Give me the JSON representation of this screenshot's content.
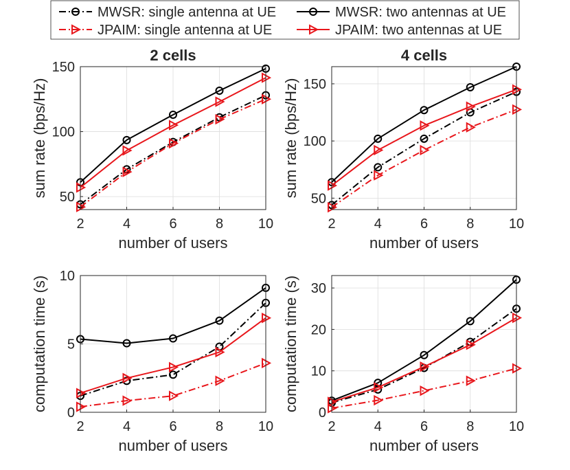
{
  "legend": {
    "entries": [
      {
        "label": "MWSR: single antenna at UE",
        "color": "#000000",
        "dash": "dashdot",
        "marker": "circle"
      },
      {
        "label": "MWSR: two antennas at UE",
        "color": "#000000",
        "dash": "solid",
        "marker": "circle"
      },
      {
        "label": "JPAIM: single antenna at UE",
        "color": "#e8161b",
        "dash": "dashdot",
        "marker": "triangle"
      },
      {
        "label": "JPAIM: two antennas at UE",
        "color": "#e8161b",
        "dash": "solid",
        "marker": "triangle"
      }
    ]
  },
  "chart_data": [
    {
      "type": "line",
      "title": "2 cells",
      "xlabel": "number of users",
      "ylabel": "sum rate (bps/Hz)",
      "x": [
        2,
        4,
        6,
        8,
        10
      ],
      "xlim": [
        2,
        10
      ],
      "ylim": [
        40,
        150
      ],
      "xticks": [
        "2",
        "4",
        "6",
        "8",
        "10"
      ],
      "yticks": [
        50,
        100,
        150
      ],
      "grid": true,
      "series": [
        {
          "name": "MWSR: single antenna at UE",
          "values": [
            44,
            71,
            92,
            111,
            128
          ]
        },
        {
          "name": "MWSR: two antennas at UE",
          "values": [
            61,
            93.5,
            113,
            131.5,
            148.5
          ]
        },
        {
          "name": "JPAIM: single antenna at UE",
          "values": [
            42,
            69,
            91,
            109.5,
            125
          ]
        },
        {
          "name": "JPAIM: two antennas at UE",
          "values": [
            57,
            85.5,
            105,
            123,
            141.5
          ]
        }
      ]
    },
    {
      "type": "line",
      "title": "4 cells",
      "xlabel": "number of users",
      "ylabel": "sum rate (bps/Hz)",
      "x": [
        2,
        4,
        6,
        8,
        10
      ],
      "xlim": [
        2,
        10
      ],
      "ylim": [
        40,
        165
      ],
      "xticks": [
        "2",
        "4",
        "6",
        "8",
        "10"
      ],
      "yticks": [
        50,
        100,
        150
      ],
      "grid": true,
      "series": [
        {
          "name": "MWSR: single antenna at UE",
          "values": [
            44,
            77,
            102,
            125,
            143
          ]
        },
        {
          "name": "MWSR: two antennas at UE",
          "values": [
            64,
            102,
            127,
            147,
            165
          ]
        },
        {
          "name": "JPAIM: single antenna at UE",
          "values": [
            42,
            70,
            92,
            112,
            127.5
          ]
        },
        {
          "name": "JPAIM: two antennas at UE",
          "values": [
            61,
            92,
            113.5,
            130,
            145
          ]
        }
      ]
    },
    {
      "type": "line",
      "title": "",
      "xlabel": "number of users",
      "ylabel": "computation time (s)",
      "x": [
        2,
        4,
        6,
        8,
        10
      ],
      "xlim": [
        2,
        10
      ],
      "ylim": [
        0,
        10
      ],
      "xticks": [
        "2",
        "4",
        "6",
        "8",
        "10"
      ],
      "yticks": [
        0,
        5,
        10
      ],
      "grid": true,
      "series": [
        {
          "name": "MWSR: single antenna at UE",
          "values": [
            1.2,
            2.3,
            2.75,
            4.8,
            8.0
          ]
        },
        {
          "name": "MWSR: two antennas at UE",
          "values": [
            5.35,
            5.05,
            5.4,
            6.7,
            9.1
          ]
        },
        {
          "name": "JPAIM: single antenna at UE",
          "values": [
            0.4,
            0.85,
            1.2,
            2.3,
            3.6
          ]
        },
        {
          "name": "JPAIM: two antennas at UE",
          "values": [
            1.4,
            2.5,
            3.3,
            4.4,
            6.9
          ]
        }
      ]
    },
    {
      "type": "line",
      "title": "",
      "xlabel": "number of users",
      "ylabel": "computation time (s)",
      "x": [
        2,
        4,
        6,
        8,
        10
      ],
      "xlim": [
        2,
        10
      ],
      "ylim": [
        0,
        33
      ],
      "xticks": [
        "2",
        "4",
        "6",
        "8",
        "10"
      ],
      "yticks": [
        0,
        10,
        20,
        30
      ],
      "grid": true,
      "series": [
        {
          "name": "MWSR: single antenna at UE",
          "values": [
            2.3,
            5.5,
            10.7,
            17,
            25
          ]
        },
        {
          "name": "MWSR: two antennas at UE",
          "values": [
            2.8,
            7.1,
            13.8,
            22,
            32
          ]
        },
        {
          "name": "JPAIM: single antenna at UE",
          "values": [
            1.0,
            2.9,
            5.2,
            7.6,
            10.6
          ]
        },
        {
          "name": "JPAIM: two antennas at UE",
          "values": [
            2.5,
            6.0,
            11.0,
            16.3,
            22.8
          ]
        }
      ]
    }
  ]
}
